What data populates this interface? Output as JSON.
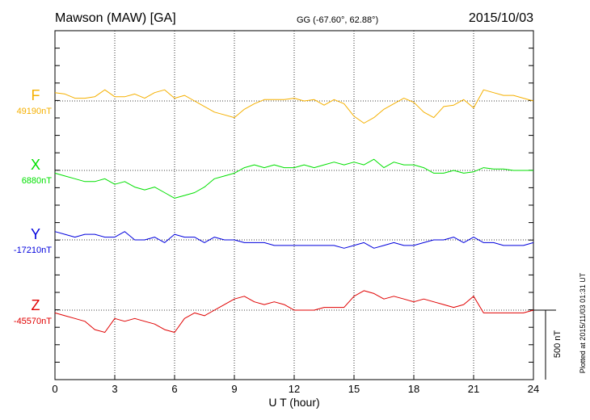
{
  "header": {
    "station": "Mawson (MAW)  [GA]",
    "coords": "GG (-67.60°,  62.88°)",
    "date": "2015/10/03"
  },
  "scale": {
    "label": "500 nT",
    "nT": 500
  },
  "plotted_note": "Plotted at 2015/11/03 01:31 UT",
  "colors": {
    "F": "#f5b000",
    "X": "#00e000",
    "Y": "#0000dd",
    "Z": "#e00000"
  },
  "chart_data": {
    "type": "line",
    "xlabel": "U T (hour)",
    "xlim": [
      0,
      24
    ],
    "xticks": [
      0,
      3,
      6,
      9,
      12,
      15,
      18,
      21,
      24
    ],
    "grid": true,
    "series": [
      {
        "name": "F",
        "base_label": "49190nT",
        "color": "#f5b000",
        "x": [
          0,
          0.5,
          1,
          1.5,
          2,
          2.5,
          3,
          3.5,
          4,
          4.5,
          5,
          5.5,
          6,
          6.5,
          7,
          7.5,
          8,
          8.5,
          9,
          9.5,
          10,
          10.5,
          11,
          11.5,
          12,
          12.5,
          13,
          13.5,
          14,
          14.5,
          15,
          15.5,
          16,
          16.5,
          17,
          17.5,
          18,
          18.5,
          19,
          19.5,
          20,
          20.5,
          21,
          21.5,
          22,
          22.5,
          23,
          23.5,
          24
        ],
        "y": [
          60,
          50,
          20,
          20,
          30,
          80,
          30,
          30,
          50,
          20,
          60,
          80,
          20,
          40,
          0,
          -40,
          -80,
          -100,
          -120,
          -60,
          -20,
          10,
          10,
          10,
          20,
          0,
          10,
          -30,
          10,
          -20,
          -110,
          -160,
          -120,
          -60,
          -20,
          20,
          -10,
          -80,
          -120,
          -40,
          -30,
          10,
          -50,
          80,
          60,
          40,
          40,
          20,
          0
        ]
      },
      {
        "name": "X",
        "base_label": "6880nT",
        "color": "#00e000",
        "x": [
          0,
          0.5,
          1,
          1.5,
          2,
          2.5,
          3,
          3.5,
          4,
          4.5,
          5,
          5.5,
          6,
          6.5,
          7,
          7.5,
          8,
          8.5,
          9,
          9.5,
          10,
          10.5,
          11,
          11.5,
          12,
          12.5,
          13,
          13.5,
          14,
          14.5,
          15,
          15.5,
          16,
          16.5,
          17,
          17.5,
          18,
          18.5,
          19,
          19.5,
          20,
          20.5,
          21,
          21.5,
          22,
          22.5,
          23,
          23.5,
          24
        ],
        "y": [
          -20,
          -40,
          -60,
          -80,
          -80,
          -60,
          -100,
          -80,
          -120,
          -140,
          -120,
          -160,
          -200,
          -180,
          -160,
          -120,
          -60,
          -40,
          -20,
          20,
          40,
          20,
          40,
          20,
          20,
          40,
          20,
          40,
          60,
          40,
          60,
          40,
          80,
          20,
          60,
          40,
          40,
          20,
          -20,
          -20,
          0,
          -20,
          -10,
          20,
          10,
          10,
          0,
          0,
          0
        ]
      },
      {
        "name": "Y",
        "base_label": "-17210nT",
        "color": "#0000dd",
        "x": [
          0,
          0.5,
          1,
          1.5,
          2,
          2.5,
          3,
          3.5,
          4,
          4.5,
          5,
          5.5,
          6,
          6.5,
          7,
          7.5,
          8,
          8.5,
          9,
          9.5,
          10,
          10.5,
          11,
          11.5,
          12,
          12.5,
          13,
          13.5,
          14,
          14.5,
          15,
          15.5,
          16,
          16.5,
          17,
          17.5,
          18,
          18.5,
          19,
          19.5,
          20,
          20.5,
          21,
          21.5,
          22,
          22.5,
          23,
          23.5,
          24
        ],
        "y": [
          60,
          40,
          20,
          40,
          40,
          20,
          20,
          60,
          0,
          0,
          20,
          -20,
          40,
          20,
          20,
          -20,
          20,
          0,
          0,
          -20,
          -20,
          -20,
          -40,
          -40,
          -40,
          -40,
          -40,
          -40,
          -40,
          -60,
          -40,
          -20,
          -60,
          -40,
          -20,
          -40,
          -40,
          -20,
          0,
          0,
          20,
          -20,
          20,
          -20,
          -20,
          -40,
          -40,
          -40,
          -20
        ]
      },
      {
        "name": "Z",
        "base_label": "-45570nT",
        "color": "#e00000",
        "x": [
          0,
          0.5,
          1,
          1.5,
          2,
          2.5,
          3,
          3.5,
          4,
          4.5,
          5,
          5.5,
          6,
          6.5,
          7,
          7.5,
          8,
          8.5,
          9,
          9.5,
          10,
          10.5,
          11,
          11.5,
          12,
          12.5,
          13,
          13.5,
          14,
          14.5,
          15,
          15.5,
          16,
          16.5,
          17,
          17.5,
          18,
          18.5,
          19,
          19.5,
          20,
          20.5,
          21,
          21.5,
          22,
          22.5,
          23,
          23.5,
          24
        ],
        "y": [
          -20,
          -40,
          -60,
          -80,
          -140,
          -160,
          -60,
          -80,
          -60,
          -80,
          -100,
          -140,
          -160,
          -60,
          -20,
          -40,
          0,
          40,
          80,
          100,
          60,
          40,
          60,
          40,
          0,
          0,
          0,
          20,
          20,
          20,
          100,
          140,
          120,
          80,
          100,
          80,
          60,
          80,
          60,
          40,
          20,
          40,
          100,
          -20,
          -20,
          -20,
          -20,
          -20,
          0
        ]
      }
    ]
  }
}
